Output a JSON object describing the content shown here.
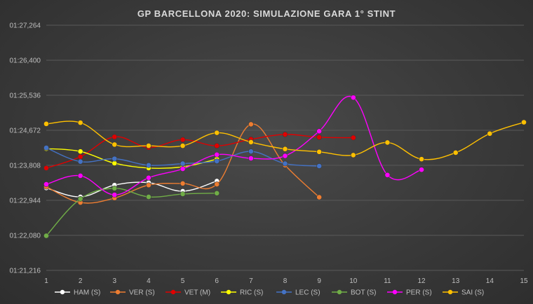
{
  "chart_data": {
    "type": "line",
    "title": "GP BARCELLONA 2020: SIMULAZIONE GARA 1° STINT",
    "xlabel": "",
    "ylabel": "",
    "x": [
      1,
      2,
      3,
      4,
      5,
      6,
      7,
      8,
      9,
      10,
      11,
      12,
      13,
      14,
      15
    ],
    "x_tick_labels": [
      "1",
      "2",
      "3",
      "4",
      "5",
      "6",
      "7",
      "8",
      "9",
      "10",
      "11",
      "12",
      "13",
      "14",
      "15"
    ],
    "ylim": [
      81.216,
      87.264
    ],
    "y_ticks": [
      81.216,
      82.08,
      82.944,
      83.808,
      84.672,
      85.536,
      86.4,
      87.264
    ],
    "y_tick_labels": [
      "01:21,216",
      "01:22,080",
      "01:22,944",
      "01:23,808",
      "01:24,672",
      "01:25,536",
      "01:26,400",
      "01:27,264"
    ],
    "grid": true,
    "legend_position": "bottom",
    "series": [
      {
        "name": "HAM (S)",
        "color": "#ffffff",
        "x": [
          1,
          2,
          3,
          4,
          5,
          6
        ],
        "values": [
          83.25,
          83.03,
          83.32,
          83.38,
          83.17,
          83.42
        ]
      },
      {
        "name": "VER (S)",
        "color": "#ed7d31",
        "x": [
          1,
          2,
          3,
          4,
          5,
          6,
          7,
          8,
          9
        ],
        "values": [
          83.28,
          82.89,
          83.0,
          83.32,
          83.36,
          83.34,
          84.82,
          83.81,
          83.02
        ]
      },
      {
        "name": "VET (M)",
        "color": "#e00000",
        "x": [
          1,
          2,
          3,
          4,
          5,
          6,
          7,
          8,
          9,
          10
        ],
        "values": [
          83.74,
          84.02,
          84.51,
          84.25,
          84.44,
          84.29,
          84.45,
          84.57,
          84.5,
          84.49
        ]
      },
      {
        "name": "RIC (S)",
        "color": "#ffff00",
        "x": [
          1,
          2,
          3,
          4,
          5,
          6
        ],
        "values": [
          84.22,
          84.15,
          83.86,
          83.74,
          83.77,
          83.96
        ]
      },
      {
        "name": "LEC (S)",
        "color": "#4472c4",
        "x": [
          1,
          2,
          3,
          4,
          5,
          6,
          7,
          8,
          9
        ],
        "values": [
          84.24,
          83.9,
          83.97,
          83.81,
          83.85,
          83.91,
          84.15,
          83.85,
          83.79
        ]
      },
      {
        "name": "BOT (S)",
        "color": "#70ad47",
        "x": [
          1,
          2,
          3,
          4,
          5,
          6
        ],
        "values": [
          82.07,
          82.98,
          83.24,
          83.03,
          83.1,
          83.12
        ]
      },
      {
        "name": "PER (S)",
        "color": "#ff00ff",
        "x": [
          1,
          2,
          3,
          4,
          5,
          6,
          7,
          8,
          9,
          10,
          11,
          12
        ],
        "values": [
          83.34,
          83.55,
          83.08,
          83.5,
          83.72,
          84.07,
          83.98,
          84.04,
          84.65,
          85.48,
          83.57,
          83.7
        ]
      },
      {
        "name": "SAI (S)",
        "color": "#ffc000",
        "x": [
          1,
          2,
          3,
          4,
          5,
          6,
          7,
          8,
          9,
          10,
          11,
          12,
          13,
          14,
          15
        ],
        "values": [
          84.83,
          84.86,
          84.32,
          84.29,
          84.29,
          84.61,
          84.38,
          84.21,
          84.14,
          84.06,
          84.37,
          83.96,
          84.12,
          84.59,
          84.87
        ]
      }
    ]
  }
}
